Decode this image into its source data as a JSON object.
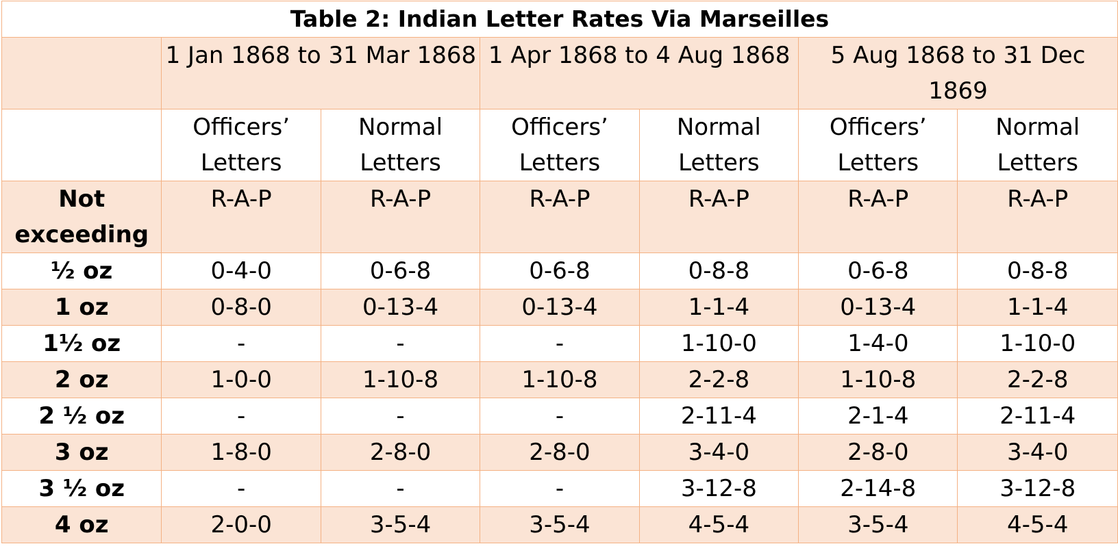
{
  "title": "Table 2: Indian Letter Rates Via Marseilles",
  "periods": [
    "1 Jan 1868 to 31 Mar 1868",
    "1 Apr 1868 to 4 Aug 1868",
    "5 Aug 1868 to 31 Dec 1869"
  ],
  "letter_types": [
    "Officers’ Letters",
    "Normal Letters",
    "Officers’ Letters",
    "Normal Letters",
    "Officers’ Letters",
    "Normal Letters"
  ],
  "units_row": {
    "label": "Not exceeding",
    "units": [
      "R-A-P",
      "R-A-P",
      "R-A-P",
      "R-A-P",
      "R-A-P",
      "R-A-P"
    ]
  },
  "rows": [
    {
      "weight": "½ oz",
      "values": [
        "0-4-0",
        "0-6-8",
        "0-6-8",
        "0-8-8",
        "0-6-8",
        "0-8-8"
      ]
    },
    {
      "weight": "1 oz",
      "values": [
        "0-8-0",
        "0-13-4",
        "0-13-4",
        "1-1-4",
        "0-13-4",
        "1-1-4"
      ]
    },
    {
      "weight": "1½ oz",
      "values": [
        "-",
        "-",
        "-",
        "1-10-0",
        "1-4-0",
        "1-10-0"
      ]
    },
    {
      "weight": "2 oz",
      "values": [
        "1-0-0",
        "1-10-8",
        "1-10-8",
        "2-2-8",
        "1-10-8",
        "2-2-8"
      ]
    },
    {
      "weight": "2 ½ oz",
      "values": [
        "-",
        "-",
        "-",
        "2-11-4",
        "2-1-4",
        "2-11-4"
      ]
    },
    {
      "weight": "3 oz",
      "values": [
        "1-8-0",
        "2-8-0",
        "2-8-0",
        "3-4-0",
        "2-8-0",
        "3-4-0"
      ]
    },
    {
      "weight": "3 ½ oz",
      "values": [
        "-",
        "-",
        "-",
        "3-12-8",
        "2-14-8",
        "3-12-8"
      ]
    },
    {
      "weight": "4 oz",
      "values": [
        "2-0-0",
        "3-5-4",
        "3-5-4",
        "4-5-4",
        "3-5-4",
        "4-5-4"
      ]
    }
  ]
}
